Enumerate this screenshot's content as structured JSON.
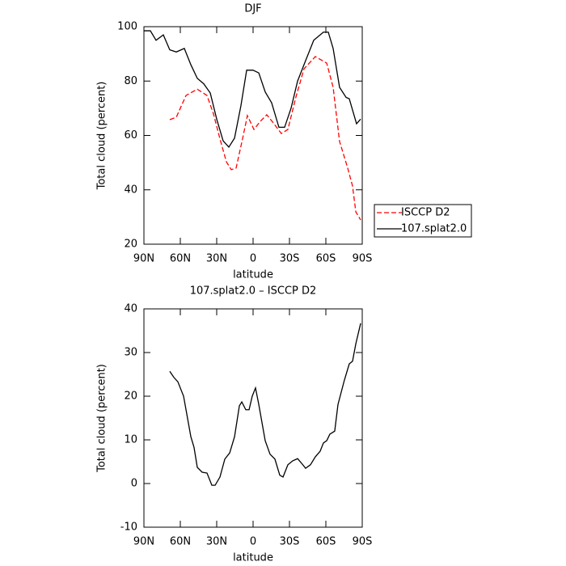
{
  "chart_data": [
    {
      "type": "line",
      "title": "DJF",
      "xlabel": "latitude",
      "ylabel": "Total cloud (percent)",
      "xlim": [
        90,
        -90
      ],
      "ylim": [
        20,
        100
      ],
      "xticks": [
        {
          "value": 90,
          "label": "90N"
        },
        {
          "value": 60,
          "label": "60N"
        },
        {
          "value": 30,
          "label": "30N"
        },
        0,
        {
          "value": -30,
          "label": "30S"
        },
        {
          "value": -60,
          "label": "60S"
        },
        {
          "value": -90,
          "label": "90S"
        }
      ],
      "yticks": [
        20,
        40,
        60,
        80,
        100
      ],
      "legend": "right",
      "series": [
        {
          "name": "ISCCP D2",
          "color": "#ff0000",
          "line_style": "dashed",
          "x": [
            68.7,
            63.3,
            55.3,
            46,
            38,
            32.7,
            27.3,
            22,
            18,
            14,
            8.7,
            4.7,
            -0.7,
            -6,
            -11.3,
            -16.7,
            -23.3,
            -28.7,
            -35.3,
            -42,
            -51.3,
            -60.7,
            -66,
            -71.3,
            -78,
            -82,
            -84.7,
            -88.7
          ],
          "values": [
            65.8,
            66.7,
            74.7,
            77,
            74.7,
            68,
            58.7,
            50.3,
            47.4,
            48,
            58.7,
            67.3,
            62.2,
            65.2,
            67.6,
            64.6,
            60.7,
            62.2,
            74.1,
            84.5,
            89,
            86.6,
            77.7,
            57.8,
            48,
            41.4,
            31.9,
            28.9
          ]
        },
        {
          "name": "107.splat2.0",
          "color": "#000000",
          "line_style": "solid",
          "x": [
            90,
            84.7,
            80,
            74,
            68.7,
            63.3,
            56.7,
            51.3,
            46,
            40.7,
            35.3,
            30,
            24.7,
            20,
            15.3,
            10,
            5.3,
            0,
            -4.7,
            -10,
            -15.3,
            -21.3,
            -26,
            -31.3,
            -36.7,
            -43.3,
            -50,
            -58,
            -62,
            -66,
            -71.3,
            -76.7,
            -79.3,
            -85.3,
            -88.7
          ],
          "values": [
            98.5,
            98.5,
            95,
            97,
            91.5,
            90.7,
            92,
            86,
            81,
            79,
            75.6,
            66,
            58,
            55.7,
            59,
            71,
            84,
            84,
            83,
            76,
            72,
            63,
            63,
            70,
            80,
            87.5,
            95,
            98,
            98,
            92,
            77.7,
            74,
            73.5,
            64.3,
            66
          ]
        }
      ]
    },
    {
      "type": "line",
      "title": "107.splat2.0 – ISCCP D2",
      "xlabel": "latitude",
      "ylabel": "Total cloud (percent)",
      "xlim": [
        90,
        -90
      ],
      "ylim": [
        -10,
        40
      ],
      "xticks": [
        {
          "value": 90,
          "label": "90N"
        },
        {
          "value": 60,
          "label": "60N"
        },
        {
          "value": 30,
          "label": "30N"
        },
        0,
        {
          "value": -30,
          "label": "30S"
        },
        {
          "value": -60,
          "label": "60S"
        },
        {
          "value": -90,
          "label": "90S"
        }
      ],
      "yticks": [
        -10,
        0,
        10,
        20,
        30,
        40
      ],
      "series": [
        {
          "color": "#000000",
          "line_style": "solid",
          "x": [
            68.7,
            65.3,
            62,
            57.3,
            51.3,
            48.7,
            46,
            42,
            38,
            34,
            31.3,
            27.3,
            23.3,
            19.3,
            15.3,
            11.3,
            9.3,
            6,
            3.3,
            0.7,
            -2,
            -4.7,
            -10,
            -14,
            -18,
            -22,
            -24.7,
            -28.7,
            -32.7,
            -36.7,
            -40.7,
            -43.3,
            -47.3,
            -51.3,
            -55.3,
            -58,
            -60.7,
            -63.3,
            -67.3,
            -70,
            -75.3,
            -79.3,
            -82,
            -84.7,
            -88.7
          ],
          "values": [
            25.7,
            24.3,
            23.3,
            20,
            10.7,
            8.3,
            3.7,
            2.6,
            2.4,
            -0.4,
            -0.4,
            1.5,
            5.6,
            7,
            10.7,
            17.8,
            18.7,
            16.9,
            16.9,
            20,
            21.9,
            18.1,
            9.8,
            6.7,
            5.6,
            1.9,
            1.5,
            4.3,
            5.2,
            5.7,
            4.4,
            3.5,
            4.3,
            6.1,
            7.4,
            9.3,
            9.8,
            11.3,
            12,
            18.1,
            23.7,
            27.4,
            28,
            32,
            36.7
          ]
        }
      ]
    }
  ]
}
